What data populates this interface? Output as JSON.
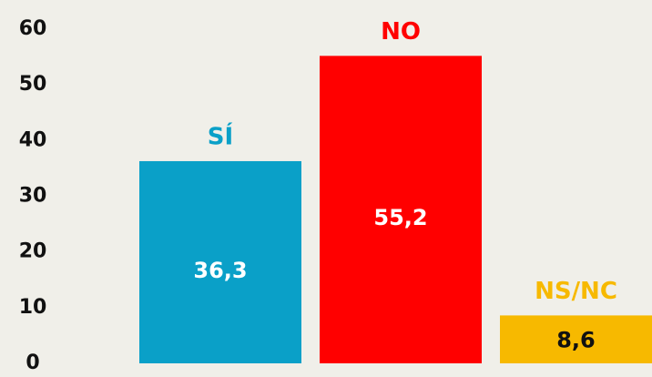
{
  "chart_data": {
    "type": "bar",
    "categories": [
      "SÍ",
      "NO",
      "NS/NC"
    ],
    "values": [
      36.3,
      55.2,
      8.6
    ],
    "value_labels": [
      "36,3",
      "55,2",
      "8,6"
    ],
    "colors": [
      "#0aa0c8",
      "#ff0000",
      "#f7b900"
    ],
    "ylim": [
      0,
      60
    ],
    "yticks": [
      0,
      10,
      20,
      30,
      40,
      50,
      60
    ],
    "grid": false
  }
}
